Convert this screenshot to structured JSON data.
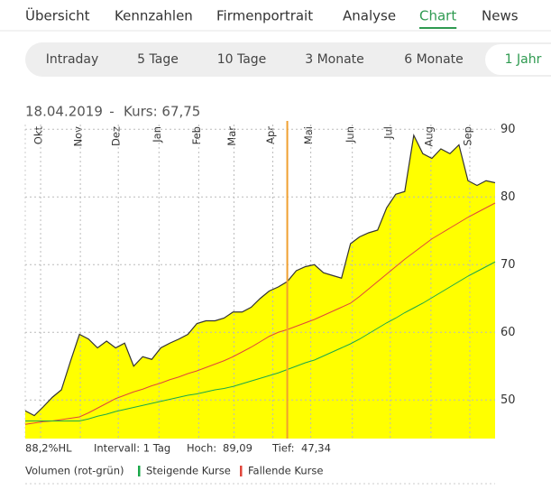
{
  "nav": {
    "items": [
      "Übersicht",
      "Kennzahlen",
      "Firmenportrait",
      "Analyse",
      "Chart",
      "News"
    ],
    "active": 4
  },
  "period_tabs": {
    "items": [
      "Intraday",
      "5 Tage",
      "10 Tage",
      "3 Monate",
      "6 Monate",
      "1 Jahr"
    ],
    "active": 5
  },
  "header": {
    "date": "18.04.2019",
    "separator": "-",
    "price": "Kurs: 67,75"
  },
  "chart_data": {
    "type": "line",
    "xlim": [
      0,
      52
    ],
    "xticks": [
      {
        "value": 1.7,
        "label": "Okt"
      },
      {
        "value": 6.1,
        "label": "Nov"
      },
      {
        "value": 10.3,
        "label": "Dez"
      },
      {
        "value": 14.8,
        "label": "Jan"
      },
      {
        "value": 19.2,
        "label": "Feb"
      },
      {
        "value": 23.1,
        "label": "Mar"
      },
      {
        "value": 27.4,
        "label": "Apr"
      },
      {
        "value": 31.6,
        "label": "Mai"
      },
      {
        "value": 36.2,
        "label": "Jun"
      },
      {
        "value": 40.4,
        "label": "Jul"
      },
      {
        "value": 44.9,
        "label": "Aug"
      },
      {
        "value": 49.2,
        "label": "Sep"
      }
    ],
    "ylim": [
      44.3,
      90.7
    ],
    "yticks": [
      50,
      60,
      70,
      80,
      90
    ],
    "grid": true,
    "cursor_x": 29,
    "cursor_color": "#f0a030",
    "series": [
      {
        "color": "#333333",
        "fill": "#ffff00",
        "values": [
          48.4,
          47.7,
          49,
          50.4,
          51.5,
          55.7,
          59.7,
          59,
          57.7,
          58.7,
          57.7,
          58.4,
          55,
          56.4,
          56,
          57.7,
          58.4,
          59,
          59.7,
          61.3,
          61.7,
          61.7,
          62.1,
          63,
          63,
          63.7,
          65,
          66.1,
          66.7,
          67.5,
          69.1,
          69.7,
          70,
          68.8,
          68.4,
          68,
          73.1,
          74.1,
          74.7,
          75.1,
          78.4,
          80.4,
          80.8,
          89.1,
          86.4,
          85.7,
          87.1,
          86.4,
          87.7,
          82.4,
          81.7,
          82.4,
          82.1
        ]
      },
      {
        "color": "#e0453a",
        "values": [
          46.4,
          46.6,
          46.8,
          46.9,
          47.1,
          47.3,
          47.5,
          48.1,
          48.8,
          49.5,
          50.2,
          50.7,
          51.2,
          51.6,
          52.1,
          52.5,
          53.0,
          53.4,
          53.9,
          54.3,
          54.8,
          55.3,
          55.8,
          56.4,
          57.1,
          57.8,
          58.6,
          59.4,
          60.0,
          60.4,
          60.9,
          61.4,
          61.9,
          62.5,
          63.1,
          63.7,
          64.3,
          65.3,
          66.4,
          67.5,
          68.6,
          69.7,
          70.8,
          71.8,
          72.8,
          73.8,
          74.6,
          75.4,
          76.2,
          77.0,
          77.7,
          78.4,
          79.1
        ]
      },
      {
        "color": "#1aa84a",
        "values": [
          46.9,
          46.9,
          46.9,
          46.9,
          46.9,
          46.9,
          46.9,
          47.2,
          47.6,
          47.9,
          48.3,
          48.6,
          48.9,
          49.2,
          49.5,
          49.8,
          50.1,
          50.4,
          50.7,
          50.9,
          51.2,
          51.5,
          51.7,
          52.0,
          52.4,
          52.8,
          53.2,
          53.6,
          54.0,
          54.5,
          55.0,
          55.5,
          55.9,
          56.5,
          57.1,
          57.7,
          58.3,
          59.0,
          59.8,
          60.6,
          61.4,
          62.1,
          62.9,
          63.6,
          64.3,
          65.1,
          65.9,
          66.7,
          67.5,
          68.3,
          69.0,
          69.7,
          70.4
        ]
      }
    ]
  },
  "info": {
    "range": "88,2%HL",
    "interval": "Intervall: 1 Tag",
    "high_label": "Hoch:",
    "high": "89,09",
    "low_label": "Tief:",
    "low": "47,34"
  },
  "legend": {
    "title": "Volumen (rot-grün)",
    "rising": {
      "label": "Steigende Kurse",
      "color": "#1aa84a"
    },
    "falling": {
      "label": "Fallende Kurse",
      "color": "#e0453a"
    }
  }
}
